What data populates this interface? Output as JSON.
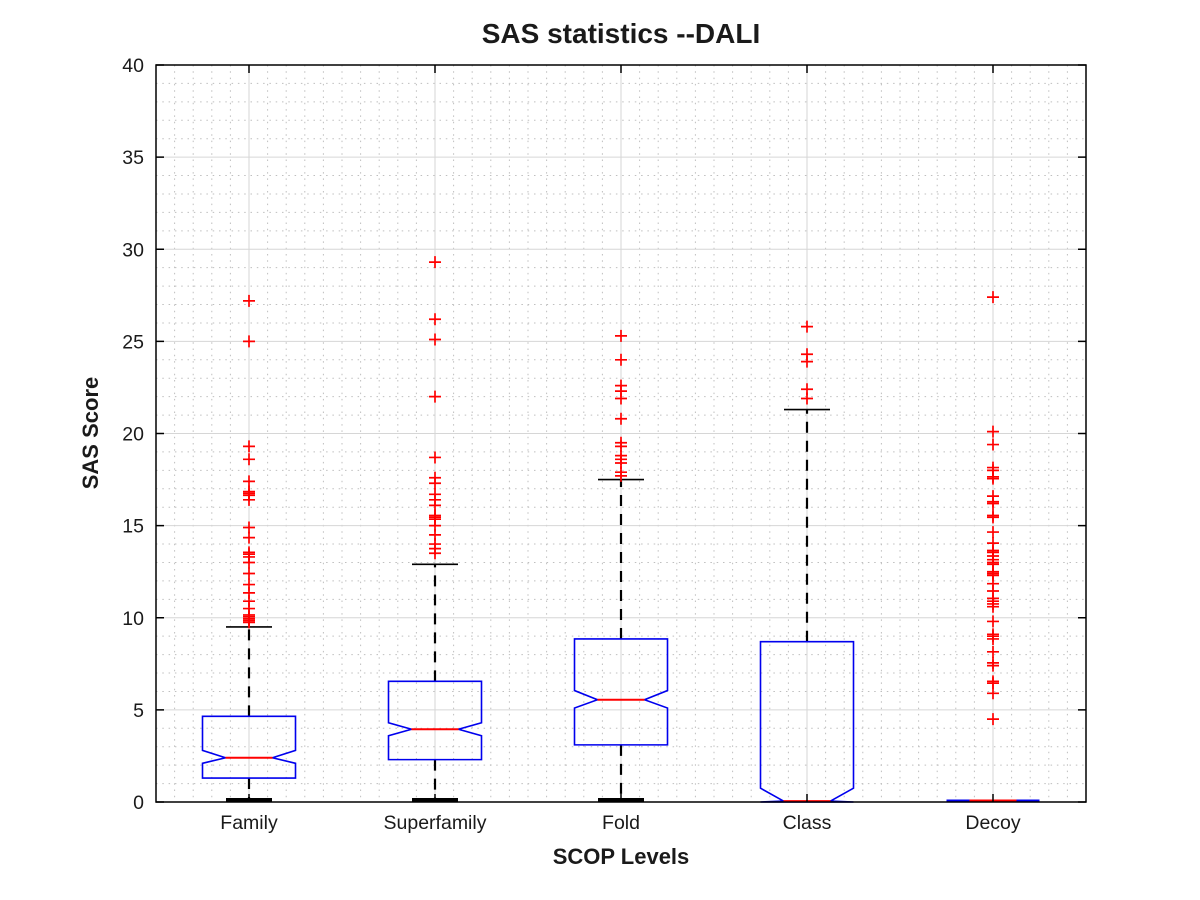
{
  "figure": {
    "background": "#ffffff"
  },
  "chart_data": {
    "type": "boxplot",
    "title": "SAS statistics --DALI",
    "xlabel": "SCOP Levels",
    "ylabel": "SAS Score",
    "ylim": [
      0,
      40
    ],
    "yticks": [
      0,
      5,
      10,
      15,
      20,
      25,
      30,
      35,
      40
    ],
    "ytick_labels": [
      "0",
      "5",
      "10",
      "15",
      "20",
      "25",
      "30",
      "35",
      "40"
    ],
    "grid": {
      "major": true,
      "minor_dotted": true
    },
    "legend": "none",
    "colors": {
      "box": "#0000EE",
      "median": "#FF0000",
      "whisker": "#000000",
      "outlier": "#FF0000",
      "grid_major": "#D6D6D6",
      "grid_minor": "#BFBFBF",
      "axis": "#000000",
      "tick_label": "#1A1A1A"
    },
    "categories": [
      "Family",
      "Superfamily",
      "Fold",
      "Class",
      "Decoy"
    ],
    "boxes": [
      {
        "label": "Family",
        "whisker_low": 0,
        "q1": 1.3,
        "median": 2.4,
        "q3": 4.65,
        "notch_low": 2.1,
        "notch_high": 2.8,
        "whisker_high": 9.5,
        "outliers": [
          27.2,
          25.0,
          19.3,
          18.6,
          17.4,
          16.85,
          16.75,
          16.65,
          16.4,
          14.9,
          14.35,
          13.55,
          13.45,
          13.3,
          13.0,
          12.4,
          11.8,
          11.35,
          10.9,
          10.5,
          10.15,
          10.05,
          9.95,
          9.85,
          9.75
        ]
      },
      {
        "label": "Superfamily",
        "whisker_low": 0,
        "q1": 2.3,
        "median": 3.95,
        "q3": 6.55,
        "notch_low": 3.6,
        "notch_high": 4.3,
        "whisker_high": 12.9,
        "outliers": [
          29.3,
          26.2,
          25.1,
          22.0,
          18.7,
          17.6,
          17.3,
          16.7,
          16.4,
          16.1,
          15.55,
          15.45,
          15.35,
          15.0,
          14.5,
          14.0,
          13.75,
          13.5
        ]
      },
      {
        "label": "Fold",
        "whisker_low": 0,
        "q1": 3.1,
        "median": 5.55,
        "q3": 8.85,
        "notch_low": 5.1,
        "notch_high": 6.05,
        "whisker_high": 17.5,
        "outliers": [
          25.3,
          24.0,
          22.6,
          22.3,
          21.9,
          20.8,
          19.5,
          19.3,
          18.8,
          18.6,
          18.4,
          17.9,
          17.7
        ]
      },
      {
        "label": "Class",
        "whisker_low": 0,
        "q1": 0,
        "median": 0.05,
        "q3": 8.7,
        "notch_low": 0,
        "notch_high": 0.75,
        "whisker_high": 21.3,
        "outliers": [
          25.8,
          24.3,
          23.9,
          22.4,
          21.9
        ]
      },
      {
        "label": "Decoy",
        "whisker_low": 0,
        "q1": 0,
        "median": 0,
        "q3": 0,
        "notch_low": 0,
        "notch_high": 0,
        "whisker_high": 0,
        "outliers": [
          27.4,
          20.1,
          19.4,
          18.15,
          18.0,
          17.65,
          17.55,
          16.6,
          16.3,
          16.2,
          15.55,
          15.45,
          14.65,
          14.05,
          13.65,
          13.55,
          13.35,
          13.15,
          13.0,
          12.9,
          12.5,
          12.4,
          12.3,
          11.85,
          11.45,
          11.05,
          10.9,
          10.75,
          10.6,
          9.8,
          9.1,
          9.0,
          8.85,
          8.15,
          7.55,
          7.4,
          6.55,
          6.45,
          5.9,
          4.5
        ]
      }
    ]
  }
}
